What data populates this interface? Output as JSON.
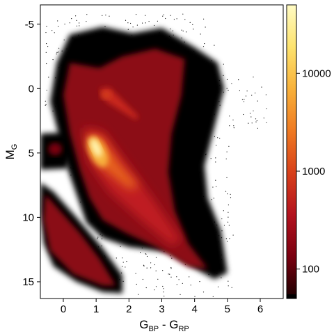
{
  "chart_data": {
    "type": "heatmap",
    "subtype": "density-scatter (Hertzsprung-Russell / color-magnitude diagram)",
    "xlabel": {
      "main": "G",
      "sub1": "BP",
      "mid": " - G",
      "sub2": "RP"
    },
    "ylabel": {
      "main": "M",
      "sub": "G"
    },
    "xlim": [
      -0.7,
      6.7
    ],
    "ylim": [
      16.3,
      -6.5
    ],
    "y_inverted": true,
    "x_ticks": [
      0,
      1,
      2,
      3,
      4,
      5,
      6
    ],
    "x_tick_labels": [
      "0",
      "1",
      "2",
      "3",
      "4",
      "5",
      "6"
    ],
    "y_ticks": [
      -5,
      0,
      5,
      10,
      15
    ],
    "y_tick_labels": [
      "-5",
      "0",
      "5",
      "10",
      "15"
    ],
    "colorbar": {
      "scale": "log",
      "min": 50,
      "max": 50000,
      "ticks": [
        100,
        1000,
        10000
      ],
      "tick_labels": [
        "100",
        "1000",
        "10000"
      ],
      "colors": [
        "#1a0000",
        "#7a0010",
        "#b3121e",
        "#d8401a",
        "#ef7a22",
        "#f8b13a",
        "#fde36e",
        "#fffbc4"
      ]
    },
    "regions": [
      {
        "name": "main sequence",
        "x": [
          0.3,
          4.6
        ],
        "y": [
          1.0,
          14.5
        ],
        "peak_density": 50000
      },
      {
        "name": "giant branch / red clump",
        "x": [
          0.8,
          2.3
        ],
        "y": [
          0.0,
          2.5
        ],
        "peak_density": 3000
      },
      {
        "name": "white dwarf sequence",
        "x": [
          -0.5,
          1.6
        ],
        "y": [
          8.0,
          15.6
        ],
        "peak_density": 200
      },
      {
        "name": "horizontal branch blob",
        "x": [
          -0.6,
          0.2
        ],
        "y": [
          4.0,
          5.5
        ],
        "peak_density": 100
      }
    ],
    "grid": false,
    "legend": "colorbar-right"
  }
}
